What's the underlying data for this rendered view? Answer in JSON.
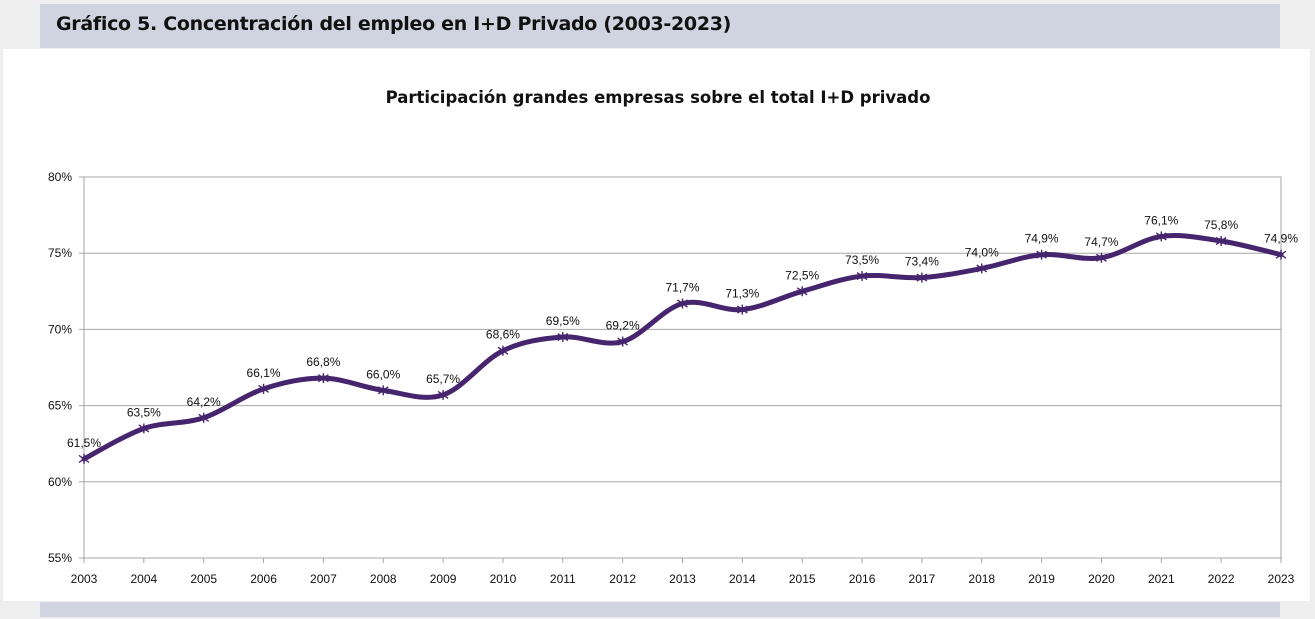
{
  "header": {
    "title": "Gráfico 5. Concentración del empleo en I+D Privado (2003-2023)"
  },
  "colors": {
    "header_band": "#cfd4e0",
    "panel": "#ffffff",
    "page_background": "#eeeeee",
    "series_line": "#46256e",
    "gridline": "#a6a6a6"
  },
  "chart_data": {
    "type": "line",
    "title": "Participación grandes empresas sobre el total I+D privado",
    "xlabel": "",
    "ylabel": "",
    "x": [
      "2003",
      "2004",
      "2005",
      "2006",
      "2007",
      "2008",
      "2009",
      "2010",
      "2011",
      "2012",
      "2013",
      "2014",
      "2015",
      "2016",
      "2017",
      "2018",
      "2019",
      "2020",
      "2021",
      "2022",
      "2023"
    ],
    "series": [
      {
        "name": "Participación grandes empresas",
        "values": [
          61.5,
          63.5,
          64.2,
          66.1,
          66.8,
          66.0,
          65.7,
          68.6,
          69.5,
          69.2,
          71.7,
          71.3,
          72.5,
          73.5,
          73.4,
          74.0,
          74.9,
          74.7,
          76.1,
          75.8,
          74.9
        ],
        "labels": [
          "61,5%",
          "63,5%",
          "64,2%",
          "66,1%",
          "66,8%",
          "66,0%",
          "65,7%",
          "68,6%",
          "69,5%",
          "69,2%",
          "71,7%",
          "71,3%",
          "72,5%",
          "73,5%",
          "73,4%",
          "74,0%",
          "74,9%",
          "74,7%",
          "76,1%",
          "75,8%",
          "74,9%"
        ],
        "marker": "asterisk",
        "smoothed": true
      }
    ],
    "ylim": [
      55,
      80
    ],
    "yticks": [
      55,
      60,
      65,
      70,
      75,
      80
    ],
    "ytick_labels": [
      "55%",
      "60%",
      "65%",
      "70%",
      "75%",
      "80%"
    ],
    "grid": "horizontal",
    "legend": "none"
  }
}
